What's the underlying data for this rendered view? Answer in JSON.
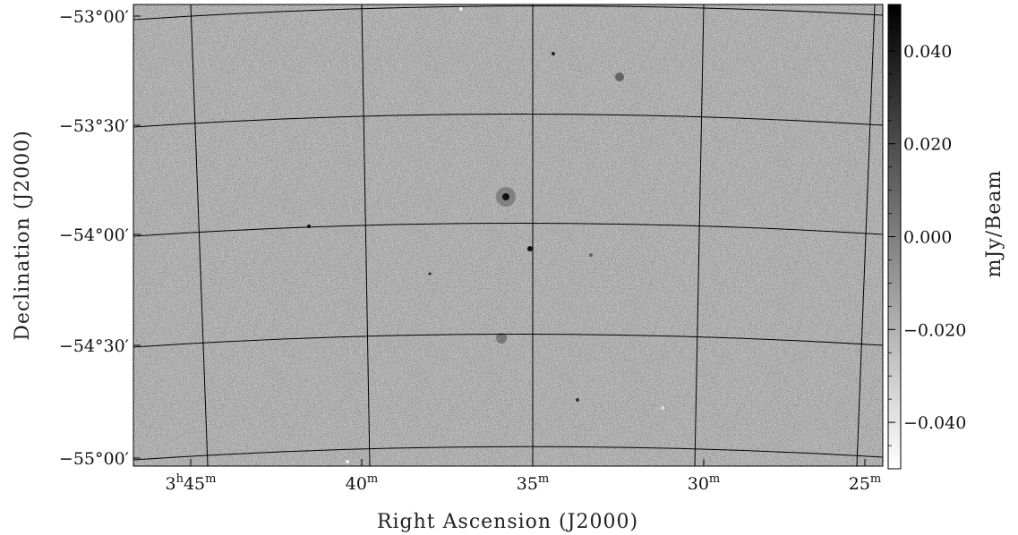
{
  "chart_data": {
    "type": "heatmap",
    "title": "",
    "xlabel": "Right Ascension (J2000)",
    "ylabel": "Declination (J2000)",
    "x_ticks": [
      {
        "main": "3",
        "sup1": "h",
        "min": "45",
        "sup2": "m"
      },
      {
        "main": "",
        "sup1": "",
        "min": "40",
        "sup2": "m"
      },
      {
        "main": "",
        "sup1": "",
        "min": "35",
        "sup2": "m"
      },
      {
        "main": "",
        "sup1": "",
        "min": "30",
        "sup2": "m"
      },
      {
        "main": "",
        "sup1": "",
        "min": "25",
        "sup2": "m"
      }
    ],
    "y_ticks": [
      "−53°00′",
      "−53°30′",
      "−54°00′",
      "−54°30′",
      "−55°00′"
    ],
    "colorbar": {
      "label": "mJy/Beam",
      "range": [
        -0.05,
        0.05
      ],
      "ticks": [
        0.04,
        0.02,
        0.0,
        -0.02,
        -0.04
      ],
      "tick_labels": [
        "0.040",
        "0.020",
        "0.000",
        "−0.020",
        "−0.040"
      ],
      "colormap": "grayscale (white low, black high)"
    },
    "grid": true
  }
}
